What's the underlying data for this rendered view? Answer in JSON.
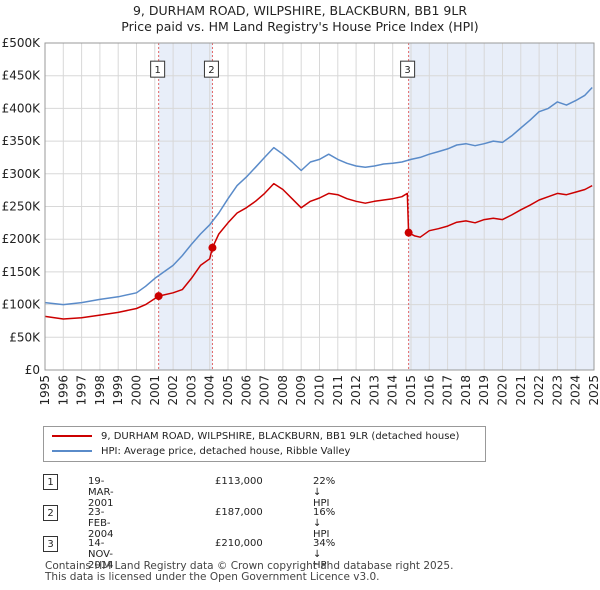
{
  "title_line1": "9, DURHAM ROAD, WILPSHIRE, BLACKBURN, BB1 9LR",
  "title_line2": "Price paid vs. HM Land Registry's House Price Index (HPI)",
  "chart_data": {
    "type": "line",
    "title": "Price paid vs. HM Land Registry's House Price Index (HPI)",
    "xlabel": "",
    "ylabel": "",
    "xlim": [
      1995,
      2025
    ],
    "ylim": [
      0,
      500000
    ],
    "grid": true,
    "y_ticks": [
      {
        "value": 0,
        "label": "£0"
      },
      {
        "value": 50000,
        "label": "£50K"
      },
      {
        "value": 100000,
        "label": "£100K"
      },
      {
        "value": 150000,
        "label": "£150K"
      },
      {
        "value": 200000,
        "label": "£200K"
      },
      {
        "value": 250000,
        "label": "£250K"
      },
      {
        "value": 300000,
        "label": "£300K"
      },
      {
        "value": 350000,
        "label": "£350K"
      },
      {
        "value": 400000,
        "label": "£400K"
      },
      {
        "value": 450000,
        "label": "£450K"
      },
      {
        "value": 500000,
        "label": "£500K"
      }
    ],
    "x_ticks": [
      1995,
      1996,
      1997,
      1998,
      1999,
      2000,
      2001,
      2002,
      2003,
      2004,
      2005,
      2006,
      2007,
      2008,
      2009,
      2010,
      2011,
      2012,
      2013,
      2014,
      2015,
      2016,
      2017,
      2018,
      2019,
      2020,
      2021,
      2022,
      2023,
      2024,
      2025
    ],
    "series": [
      {
        "name": "9, DURHAM ROAD, WILPSHIRE, BLACKBURN, BB1 9LR (detached house)",
        "color": "#cc0000",
        "points": [
          [
            1995.0,
            82000
          ],
          [
            1996.0,
            78000
          ],
          [
            1997.0,
            80000
          ],
          [
            1998.0,
            84000
          ],
          [
            1999.0,
            88000
          ],
          [
            2000.0,
            94000
          ],
          [
            2000.5,
            100000
          ],
          [
            2001.21,
            113000
          ],
          [
            2002.0,
            118000
          ],
          [
            2002.5,
            123000
          ],
          [
            2003.0,
            140000
          ],
          [
            2003.5,
            160000
          ],
          [
            2004.0,
            170000
          ],
          [
            2004.15,
            187000
          ],
          [
            2004.5,
            208000
          ],
          [
            2005.0,
            225000
          ],
          [
            2005.5,
            240000
          ],
          [
            2006.0,
            248000
          ],
          [
            2006.5,
            258000
          ],
          [
            2007.0,
            270000
          ],
          [
            2007.5,
            285000
          ],
          [
            2008.0,
            276000
          ],
          [
            2008.5,
            262000
          ],
          [
            2009.0,
            248000
          ],
          [
            2009.5,
            258000
          ],
          [
            2010.0,
            263000
          ],
          [
            2010.5,
            270000
          ],
          [
            2011.0,
            268000
          ],
          [
            2011.5,
            262000
          ],
          [
            2012.0,
            258000
          ],
          [
            2012.5,
            255000
          ],
          [
            2013.0,
            258000
          ],
          [
            2013.5,
            260000
          ],
          [
            2014.0,
            262000
          ],
          [
            2014.5,
            265000
          ],
          [
            2014.8,
            270000
          ],
          [
            2014.87,
            210000
          ],
          [
            2015.2,
            205000
          ],
          [
            2015.5,
            203000
          ],
          [
            2016.0,
            213000
          ],
          [
            2016.5,
            216000
          ],
          [
            2017.0,
            220000
          ],
          [
            2017.5,
            226000
          ],
          [
            2018.0,
            228000
          ],
          [
            2018.5,
            225000
          ],
          [
            2019.0,
            230000
          ],
          [
            2019.5,
            232000
          ],
          [
            2020.0,
            230000
          ],
          [
            2020.5,
            237000
          ],
          [
            2021.0,
            245000
          ],
          [
            2021.5,
            252000
          ],
          [
            2022.0,
            260000
          ],
          [
            2022.5,
            265000
          ],
          [
            2023.0,
            270000
          ],
          [
            2023.5,
            268000
          ],
          [
            2024.0,
            272000
          ],
          [
            2024.5,
            276000
          ],
          [
            2024.9,
            282000
          ]
        ]
      },
      {
        "name": "HPI: Average price, detached house, Ribble Valley",
        "color": "#5a8bc9",
        "points": [
          [
            1995.0,
            103000
          ],
          [
            1996.0,
            100000
          ],
          [
            1997.0,
            103000
          ],
          [
            1998.0,
            108000
          ],
          [
            1999.0,
            112000
          ],
          [
            2000.0,
            118000
          ],
          [
            2000.5,
            128000
          ],
          [
            2001.0,
            140000
          ],
          [
            2001.5,
            150000
          ],
          [
            2002.0,
            160000
          ],
          [
            2002.5,
            175000
          ],
          [
            2003.0,
            192000
          ],
          [
            2003.5,
            208000
          ],
          [
            2004.0,
            222000
          ],
          [
            2004.5,
            240000
          ],
          [
            2005.0,
            262000
          ],
          [
            2005.5,
            282000
          ],
          [
            2006.0,
            295000
          ],
          [
            2006.5,
            310000
          ],
          [
            2007.0,
            325000
          ],
          [
            2007.5,
            340000
          ],
          [
            2008.0,
            330000
          ],
          [
            2008.5,
            318000
          ],
          [
            2009.0,
            305000
          ],
          [
            2009.5,
            318000
          ],
          [
            2010.0,
            322000
          ],
          [
            2010.5,
            330000
          ],
          [
            2011.0,
            322000
          ],
          [
            2011.5,
            316000
          ],
          [
            2012.0,
            312000
          ],
          [
            2012.5,
            310000
          ],
          [
            2013.0,
            312000
          ],
          [
            2013.5,
            315000
          ],
          [
            2014.0,
            316000
          ],
          [
            2014.5,
            318000
          ],
          [
            2015.0,
            322000
          ],
          [
            2015.5,
            325000
          ],
          [
            2016.0,
            330000
          ],
          [
            2016.5,
            334000
          ],
          [
            2017.0,
            338000
          ],
          [
            2017.5,
            344000
          ],
          [
            2018.0,
            346000
          ],
          [
            2018.5,
            343000
          ],
          [
            2019.0,
            346000
          ],
          [
            2019.5,
            350000
          ],
          [
            2020.0,
            348000
          ],
          [
            2020.5,
            358000
          ],
          [
            2021.0,
            370000
          ],
          [
            2021.5,
            382000
          ],
          [
            2022.0,
            395000
          ],
          [
            2022.5,
            400000
          ],
          [
            2023.0,
            410000
          ],
          [
            2023.5,
            405000
          ],
          [
            2024.0,
            412000
          ],
          [
            2024.5,
            420000
          ],
          [
            2024.9,
            432000
          ]
        ]
      }
    ],
    "sales": [
      {
        "id": "1",
        "x": 2001.21,
        "price": 113000
      },
      {
        "id": "2",
        "x": 2004.15,
        "price": 187000
      },
      {
        "id": "3",
        "x": 2014.87,
        "price": 210000
      }
    ],
    "shaded_ranges": [
      [
        2001.21,
        2004.15
      ],
      [
        2014.87,
        2025.0
      ]
    ],
    "marker_label_y": 460000
  },
  "legend": {
    "property_label": "9, DURHAM ROAD, WILPSHIRE, BLACKBURN, BB1 9LR (detached house)",
    "hpi_label": "HPI: Average price, detached house, Ribble Valley",
    "property_color": "#cc0000",
    "hpi_color": "#5a8bc9"
  },
  "sales_table": [
    {
      "num": "1",
      "date": "19-MAR-2001",
      "price": "£113,000",
      "hpi": "22% ↓ HPI"
    },
    {
      "num": "2",
      "date": "23-FEB-2004",
      "price": "£187,000",
      "hpi": "16% ↓ HPI"
    },
    {
      "num": "3",
      "date": "14-NOV-2014",
      "price": "£210,000",
      "hpi": "34% ↓ HPI"
    }
  ],
  "footer": {
    "line1": "Contains HM Land Registry data © Crown copyright and database right 2025.",
    "line2": "This data is licensed under the Open Government Licence v3.0."
  }
}
